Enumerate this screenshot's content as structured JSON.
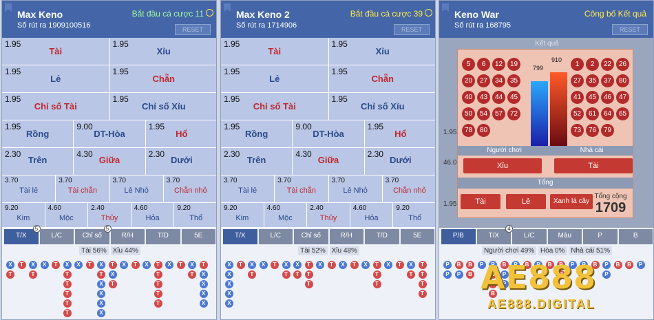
{
  "panels": [
    {
      "title": "Max Keno",
      "draw": "Số rút ra 1909100516",
      "status": "Bắt đầu cá cược 11",
      "reset": "RESET",
      "rows": [
        [
          {
            "odds": "1.95",
            "label": "Tài"
          },
          {
            "odds": "1.95",
            "label": "Xỉu"
          }
        ],
        [
          {
            "odds": "1.95",
            "label": "Lẻ"
          },
          {
            "odds": "1.95",
            "label": "Chẵn"
          }
        ],
        [
          {
            "odds": "1.95",
            "label": "Chỉ số Tài"
          },
          {
            "odds": "1.95",
            "label": "Chỉ số Xỉu"
          }
        ],
        [
          {
            "odds": "1.95",
            "label": "Rồng"
          },
          {
            "odds": "9.00",
            "label": "DT-Hòa"
          },
          {
            "odds": "1.95",
            "label": "Hổ"
          }
        ],
        [
          {
            "odds": "2.30",
            "label": "Trên"
          },
          {
            "odds": "4.30",
            "label": "Giữa"
          },
          {
            "odds": "2.30",
            "label": "Dưới"
          }
        ],
        [
          {
            "odds": "3.70",
            "label": "Tài lẻ"
          },
          {
            "odds": "3.70",
            "label": "Tài chẵn"
          },
          {
            "odds": "3.70",
            "label": "Lẻ Nhỏ"
          },
          {
            "odds": "3.70",
            "label": "Chẵn nhỏ"
          }
        ],
        [
          {
            "odds": "9.20",
            "label": "Kim"
          },
          {
            "odds": "4.60",
            "label": "Mộc"
          },
          {
            "odds": "2.40",
            "label": "Thủy"
          },
          {
            "odds": "4.60",
            "label": "Hỏa"
          },
          {
            "odds": "9.20",
            "label": "Thổ"
          }
        ]
      ],
      "tabs": [
        "T/X",
        "L/C",
        "Chỉ số",
        "R/H",
        "T/D",
        "5E"
      ],
      "tab_badges": {
        "0": "5",
        "2": "5"
      },
      "stat_a": "Tài 56%",
      "stat_b": "Xỉu 44%"
    },
    {
      "title": "Max Keno 2",
      "draw": "Số rút ra 1714906",
      "status": "Bắt đầu cá cược 39",
      "reset": "RESET",
      "rows": [
        [
          {
            "odds": "1.95",
            "label": "Tài"
          },
          {
            "odds": "1.95",
            "label": "Xỉu"
          }
        ],
        [
          {
            "odds": "1.95",
            "label": "Lẻ"
          },
          {
            "odds": "1.95",
            "label": "Chẵn"
          }
        ],
        [
          {
            "odds": "1.95",
            "label": "Chỉ số Tài"
          },
          {
            "odds": "1.95",
            "label": "Chỉ số Xỉu"
          }
        ],
        [
          {
            "odds": "1.95",
            "label": "Rồng"
          },
          {
            "odds": "9.00",
            "label": "DT-Hòa"
          },
          {
            "odds": "1.95",
            "label": "Hổ"
          }
        ],
        [
          {
            "odds": "2.30",
            "label": "Trên"
          },
          {
            "odds": "4.30",
            "label": "Giữa"
          },
          {
            "odds": "2.30",
            "label": "Dưới"
          }
        ],
        [
          {
            "odds": "3.70",
            "label": "Tài lẻ"
          },
          {
            "odds": "3.70",
            "label": "Tài chẵn"
          },
          {
            "odds": "3.70",
            "label": "Lẻ Nhỏ"
          },
          {
            "odds": "3.70",
            "label": "Chẵn nhỏ"
          }
        ],
        [
          {
            "odds": "9.20",
            "label": "Kim"
          },
          {
            "odds": "4.60",
            "label": "Mộc"
          },
          {
            "odds": "2.40",
            "label": "Thủy"
          },
          {
            "odds": "4.60",
            "label": "Hỏa"
          },
          {
            "odds": "9.20",
            "label": "Thổ"
          }
        ]
      ],
      "tabs": [
        "T/X",
        "L/C",
        "Chỉ số",
        "R/H",
        "T/D",
        "5E"
      ],
      "tab_badges": {},
      "stat_a": "Tài 52%",
      "stat_b": "Xỉu 48%"
    }
  ],
  "war": {
    "title": "Keno War",
    "draw": "Số rút ra 168795",
    "status": "Công bố Kết quả",
    "reset": "RESET",
    "result_header": "Kết quả",
    "player_numbers": [
      "5",
      "6",
      "12",
      "19",
      "20",
      "27",
      "34",
      "35",
      "40",
      "43",
      "44",
      "45",
      "50",
      "54",
      "57",
      "72",
      "78",
      "80"
    ],
    "dealer_numbers": [
      "1",
      "2",
      "22",
      "26",
      "27",
      "35",
      "37",
      "80",
      "41",
      "45",
      "46",
      "47",
      "52",
      "61",
      "64",
      "65",
      "73",
      "76",
      "79"
    ],
    "player_total": "799",
    "dealer_total": "910",
    "player_label": "Người chơi",
    "dealer_label": "Nhà cái",
    "btn_player": "Xỉu",
    "btn_dealer": "Tài",
    "tong_label": "Tổng",
    "btn_tai": "Tài",
    "btn_le": "Lẻ",
    "btn_green": "Xanh lá cây",
    "tong_cong_label": "Tổng cộng",
    "tong_cong_value": "1709",
    "side_numbers": [
      "1.95",
      "1.95",
      "46.0",
      "1.95"
    ],
    "tabs": [
      "P/B",
      "T/X",
      "L/C",
      "Màu",
      "P",
      "B"
    ],
    "tab_badges": {
      "1": "4"
    },
    "stat_a": "Người chơi 49%",
    "stat_b": "Hòa 0%",
    "stat_c": "Nhà cái 51%"
  },
  "logo": {
    "big": "AE888",
    "small": "AE888.DIGITAL"
  },
  "colors": {
    "header": "#4466a8",
    "cell": "#b9c6e6",
    "red_ball": "#d34a4a",
    "blue_ball": "#4a78d3"
  }
}
